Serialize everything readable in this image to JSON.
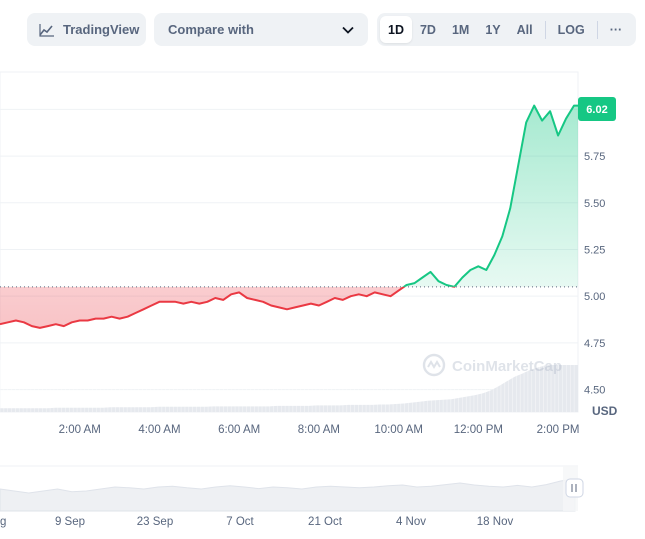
{
  "toolbar": {
    "tradingview_label": "TradingView",
    "compare_label": "Compare with",
    "ranges": [
      "1D",
      "7D",
      "1M",
      "1Y",
      "All"
    ],
    "log_label": "LOG",
    "more_label": "···",
    "active_range": "1D"
  },
  "chart_data": {
    "type": "area",
    "current_value": "6.02",
    "reference_value": 5.05,
    "currency_label": "USD",
    "watermark": "CoinMarketCap",
    "colors": {
      "up": "#16c784",
      "down": "#ea3943",
      "badge": "#16c784"
    },
    "ylim": [
      4.38,
      6.2
    ],
    "y_ticks": [
      "5.75",
      "5.50",
      "5.25",
      "5.00",
      "4.75",
      "4.50"
    ],
    "y_tick_values": [
      5.75,
      5.5,
      5.25,
      5.0,
      4.75,
      4.5
    ],
    "x_ticks": [
      "2:00 AM",
      "4:00 AM",
      "6:00 AM",
      "8:00 AM",
      "10:00 AM",
      "12:00 PM",
      "2:00 PM"
    ],
    "x_tick_hours": [
      2,
      4,
      6,
      8,
      10,
      12,
      14
    ],
    "xlim_hours": [
      0,
      14.5
    ],
    "series": [
      {
        "x": [
          0,
          0.2,
          0.4,
          0.6,
          0.8,
          1.0,
          1.2,
          1.4,
          1.6,
          1.8,
          2.0,
          2.2,
          2.4,
          2.6,
          2.8,
          3.0,
          3.2,
          3.4,
          3.6,
          3.8,
          4.0,
          4.2,
          4.4,
          4.6,
          4.8,
          5.0,
          5.2,
          5.4,
          5.6,
          5.8,
          6.0,
          6.2,
          6.4,
          6.6,
          6.8,
          7.0,
          7.2,
          7.4,
          7.6,
          7.8,
          8.0,
          8.2,
          8.4,
          8.6,
          8.8,
          9.0,
          9.2,
          9.4,
          9.6,
          9.8,
          10.0,
          10.2,
          10.4,
          10.6,
          10.8,
          11.0,
          11.2,
          11.4,
          11.6,
          11.8,
          12.0,
          12.2,
          12.4,
          12.6,
          12.8,
          13.0,
          13.2,
          13.4,
          13.6,
          13.8,
          14.0,
          14.2,
          14.4,
          14.5
        ],
        "y": [
          4.85,
          4.86,
          4.87,
          4.86,
          4.84,
          4.83,
          4.84,
          4.85,
          4.84,
          4.86,
          4.87,
          4.87,
          4.88,
          4.88,
          4.89,
          4.88,
          4.89,
          4.91,
          4.93,
          4.95,
          4.97,
          4.97,
          4.97,
          4.96,
          4.97,
          4.96,
          4.97,
          4.99,
          4.98,
          5.01,
          5.02,
          4.99,
          4.98,
          4.97,
          4.95,
          4.94,
          4.93,
          4.94,
          4.95,
          4.96,
          4.95,
          4.97,
          4.99,
          4.98,
          5.0,
          5.01,
          5.0,
          5.02,
          5.01,
          5.0,
          5.03,
          5.06,
          5.07,
          5.1,
          5.13,
          5.08,
          5.06,
          5.05,
          5.1,
          5.14,
          5.16,
          5.14,
          5.22,
          5.32,
          5.47,
          5.7,
          5.93,
          6.02,
          5.94,
          5.99,
          5.86,
          5.95,
          6.02,
          6.02
        ]
      }
    ],
    "volume": {
      "description_ok": false,
      "values": [
        0.08,
        0.08,
        0.08,
        0.08,
        0.08,
        0.08,
        0.08,
        0.09,
        0.09,
        0.09,
        0.09,
        0.09,
        0.09,
        0.09,
        0.1,
        0.1,
        0.1,
        0.1,
        0.1,
        0.1,
        0.11,
        0.11,
        0.11,
        0.11,
        0.11,
        0.11,
        0.11,
        0.12,
        0.12,
        0.12,
        0.12,
        0.12,
        0.12,
        0.12,
        0.12,
        0.13,
        0.13,
        0.13,
        0.13,
        0.13,
        0.14,
        0.14,
        0.14,
        0.14,
        0.15,
        0.15,
        0.15,
        0.15,
        0.16,
        0.16,
        0.17,
        0.18,
        0.2,
        0.22,
        0.24,
        0.25,
        0.26,
        0.27,
        0.3,
        0.33,
        0.36,
        0.4,
        0.46,
        0.55,
        0.65,
        0.75,
        0.82,
        0.9,
        0.95,
        1.0,
        1.0,
        1.0,
        1.0,
        1.0
      ]
    }
  },
  "navigator": {
    "labels": [
      "g",
      "9 Sep",
      "23 Sep",
      "7 Oct",
      "21 Oct",
      "4 Nov",
      "18 Nov"
    ],
    "handle_icon": "grip-icon"
  }
}
